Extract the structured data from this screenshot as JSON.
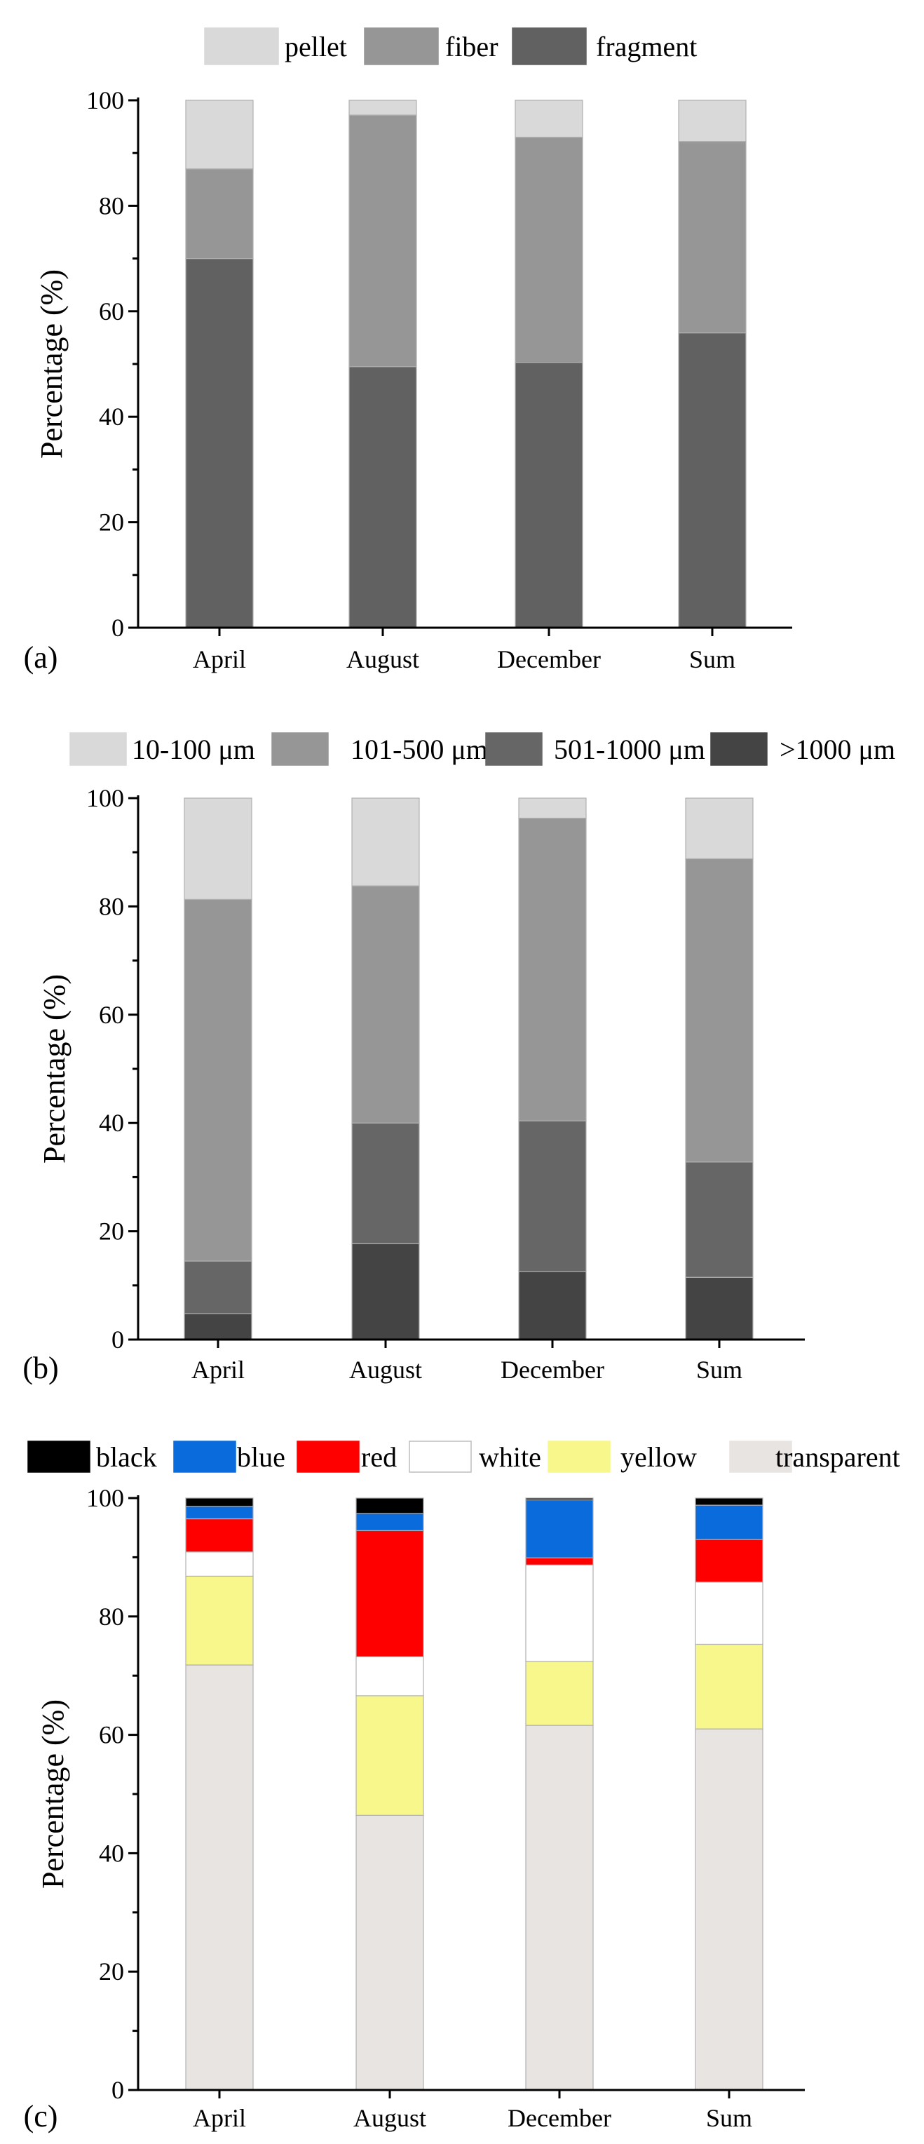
{
  "chart_data": [
    {
      "panel": "(a)",
      "type": "bar",
      "stacked": true,
      "categories": [
        "April",
        "August",
        "December",
        "Sum"
      ],
      "ylabel": "Percentage (%)",
      "xlabel": "",
      "ylim": [
        0,
        100
      ],
      "yticks": [
        0,
        20,
        40,
        60,
        80,
        100
      ],
      "series": [
        {
          "name": "fragment",
          "color": "#616161",
          "values": [
            70,
            49.5,
            50.3,
            55.9
          ]
        },
        {
          "name": "fiber",
          "color": "#969696",
          "values": [
            17,
            47.7,
            42.7,
            36.3
          ]
        },
        {
          "name": "pellet",
          "color": "#d9d9d9",
          "values": [
            13,
            2.8,
            7.0,
            7.8
          ]
        }
      ],
      "legend_order": [
        "pellet",
        "fiber",
        "fragment"
      ]
    },
    {
      "panel": "(b)",
      "type": "bar",
      "stacked": true,
      "categories": [
        "April",
        "August",
        "December",
        "Sum"
      ],
      "ylabel": "Percentage (%)",
      "xlabel": "",
      "ylim": [
        0,
        100
      ],
      "yticks": [
        0,
        20,
        40,
        60,
        80,
        100
      ],
      "series": [
        {
          "name": ">1000 μm",
          "color": "#444444",
          "values": [
            4.8,
            17.7,
            12.6,
            11.5
          ]
        },
        {
          "name": "501-1000 μm",
          "color": "#666666",
          "values": [
            9.7,
            22.3,
            27.8,
            21.3
          ]
        },
        {
          "name": "101-500 μm",
          "color": "#969696",
          "values": [
            66.8,
            43.8,
            55.9,
            56.0
          ]
        },
        {
          "name": "10-100 μm",
          "color": "#d9d9d9",
          "values": [
            18.7,
            16.2,
            3.7,
            11.2
          ]
        }
      ],
      "legend_order": [
        "10-100 μm",
        "101-500 μm",
        "501-1000 μm",
        ">1000 μm"
      ]
    },
    {
      "panel": "(c)",
      "type": "bar",
      "stacked": true,
      "categories": [
        "April",
        "August",
        "December",
        "Sum"
      ],
      "ylabel": "Percentage (%)",
      "xlabel": "",
      "ylim": [
        0,
        100
      ],
      "yticks": [
        0,
        20,
        40,
        60,
        80,
        100
      ],
      "series": [
        {
          "name": "transparent",
          "color": "#e8e4e1",
          "values": [
            71.8,
            46.4,
            61.6,
            61.0
          ]
        },
        {
          "name": "yellow",
          "color": "#f7f78c",
          "values": [
            15.0,
            20.2,
            10.8,
            14.3
          ]
        },
        {
          "name": "white",
          "color": "#ffffff",
          "values": [
            4.1,
            6.6,
            16.3,
            10.5
          ]
        },
        {
          "name": "red",
          "color": "#ff0000",
          "values": [
            5.6,
            21.3,
            1.2,
            7.2
          ]
        },
        {
          "name": "blue",
          "color": "#0a6cdc",
          "values": [
            2.1,
            2.9,
            9.8,
            5.8
          ]
        },
        {
          "name": "black",
          "color": "#000000",
          "values": [
            1.4,
            2.6,
            0.3,
            1.2
          ]
        }
      ],
      "legend_order": [
        "black",
        "blue",
        "red",
        "white",
        "yellow",
        "transparent"
      ]
    }
  ]
}
